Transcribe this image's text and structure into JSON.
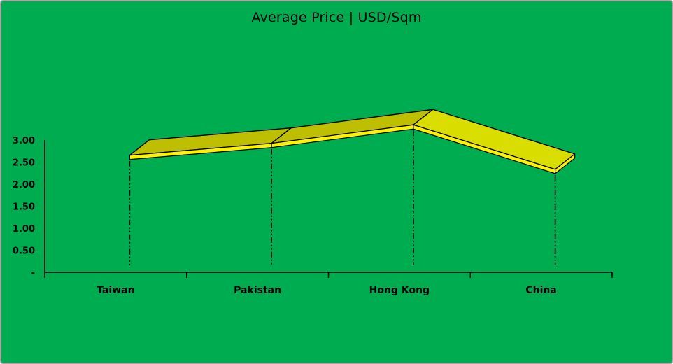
{
  "window": {
    "background_color": "#00AC50",
    "border_color": "#A6A6A6"
  },
  "chart_data": {
    "type": "line",
    "style": "3d-ribbon",
    "title": "Average Price | USD/Sqm",
    "categories": [
      "Taiwan",
      "Pakistan",
      "Hong Kong",
      "China"
    ],
    "series": [
      {
        "name": "Average Price USD/Sqm",
        "values": [
          2.56,
          2.83,
          3.25,
          2.24
        ]
      }
    ],
    "values": [
      2.56,
      2.83,
      3.25,
      2.24
    ],
    "xlabel": "",
    "ylabel": "",
    "ylim": [
      0,
      3
    ],
    "y_tick_step": 0.5,
    "y_tick_labels": [
      "-",
      "0.50",
      "1.00",
      "1.50",
      "2.00",
      "2.50",
      "3.00"
    ],
    "grid": false,
    "legend": false,
    "drop_lines": true,
    "colors": {
      "background": "#00AC50",
      "ribbon_top_rising": "#BEBF00",
      "ribbon_top_falling": "#DADE00",
      "ribbon_front": "#FFF200",
      "outline": "#000000",
      "axis": "#000000",
      "text": "#000000"
    }
  }
}
